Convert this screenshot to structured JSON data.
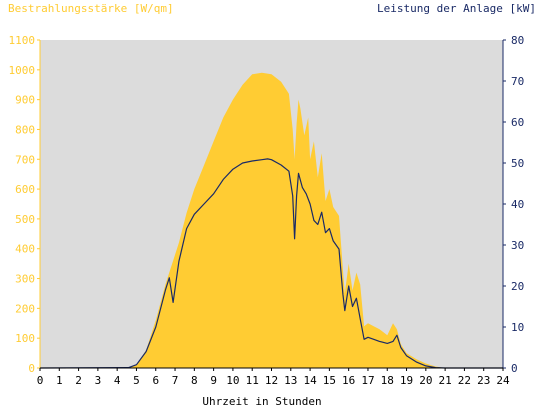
{
  "chart_data": {
    "type": "area",
    "left_axis_label": "Bestrahlungsstärke [W/qm]",
    "right_axis_label": "Leistung der Anlage [kW]",
    "xlabel": "Uhrzeit in Stunden",
    "xlim": [
      0,
      24
    ],
    "x_ticks": [
      "0",
      "1",
      "2",
      "3",
      "4",
      "5",
      "6",
      "7",
      "8",
      "9",
      "10",
      "11",
      "12",
      "13",
      "14",
      "15",
      "16",
      "17",
      "18",
      "19",
      "20",
      "21",
      "22",
      "23",
      "24"
    ],
    "ylim_left": [
      0,
      1100
    ],
    "y_ticks_left": [
      "0",
      "100",
      "200",
      "300",
      "400",
      "500",
      "600",
      "700",
      "800",
      "900",
      "1000",
      "1100"
    ],
    "ylim_right": [
      0,
      80
    ],
    "y_ticks_right": [
      "0",
      "10",
      "20",
      "30",
      "40",
      "50",
      "60",
      "70",
      "80"
    ],
    "grid": false,
    "colors": {
      "plot_background": "#dcdcdc",
      "irradiance": "#ffcc33",
      "power": "#1a2a66",
      "left_axis_text": "#ffcc33",
      "right_axis_text": "#1a2a66",
      "x_axis_text": "#000000"
    },
    "series": [
      {
        "name": "Bestrahlungsstärke [W/qm]",
        "axis": "left",
        "style": "area",
        "x": [
          0,
          4.6,
          5.0,
          5.5,
          6.0,
          6.5,
          6.9,
          7.2,
          7.6,
          8.0,
          8.5,
          9.0,
          9.5,
          10.0,
          10.5,
          11.0,
          11.5,
          12.0,
          12.5,
          12.9,
          13.1,
          13.2,
          13.3,
          13.4,
          13.5,
          13.7,
          13.9,
          14.0,
          14.2,
          14.4,
          14.6,
          14.8,
          15.0,
          15.2,
          15.5,
          15.7,
          15.8,
          16.0,
          16.2,
          16.4,
          16.6,
          16.8,
          17.0,
          17.3,
          17.6,
          18.0,
          18.3,
          18.5,
          18.7,
          19.0,
          19.5,
          20.0,
          20.5,
          21.0,
          24
        ],
        "y": [
          0,
          2,
          10,
          60,
          160,
          280,
          360,
          420,
          520,
          600,
          680,
          760,
          840,
          900,
          950,
          985,
          990,
          985,
          960,
          920,
          800,
          700,
          820,
          900,
          870,
          780,
          840,
          700,
          760,
          640,
          720,
          560,
          600,
          540,
          510,
          330,
          250,
          350,
          260,
          320,
          280,
          140,
          150,
          140,
          130,
          110,
          150,
          130,
          80,
          50,
          30,
          15,
          5,
          0,
          0
        ]
      },
      {
        "name": "Leistung der Anlage [kW]",
        "axis": "right",
        "style": "line",
        "x": [
          0,
          4.6,
          5.0,
          5.5,
          6.0,
          6.5,
          6.7,
          6.9,
          7.2,
          7.6,
          8.0,
          8.5,
          9.0,
          9.5,
          10.0,
          10.5,
          11.0,
          11.5,
          11.8,
          12.0,
          12.5,
          12.9,
          13.1,
          13.2,
          13.3,
          13.4,
          13.6,
          13.8,
          14.0,
          14.2,
          14.4,
          14.6,
          14.8,
          15.0,
          15.2,
          15.5,
          15.7,
          15.8,
          16.0,
          16.2,
          16.4,
          16.6,
          16.8,
          17.0,
          17.3,
          17.6,
          18.0,
          18.3,
          18.5,
          18.7,
          19.0,
          19.5,
          20.0,
          20.5,
          21.0,
          24
        ],
        "y": [
          0,
          0.1,
          0.8,
          4,
          10,
          19,
          22,
          16,
          26,
          34,
          37.5,
          40,
          42.5,
          46,
          48.5,
          50,
          50.5,
          50.8,
          51,
          50.8,
          49.5,
          48,
          42,
          31.5,
          42,
          47.5,
          44,
          42.5,
          40,
          36,
          35,
          38,
          33,
          34,
          31,
          29,
          18,
          14,
          20,
          15,
          17,
          12,
          7,
          7.5,
          7,
          6.5,
          6,
          6.5,
          8,
          5,
          3,
          1.5,
          0.5,
          0.1,
          0,
          0
        ]
      }
    ]
  }
}
